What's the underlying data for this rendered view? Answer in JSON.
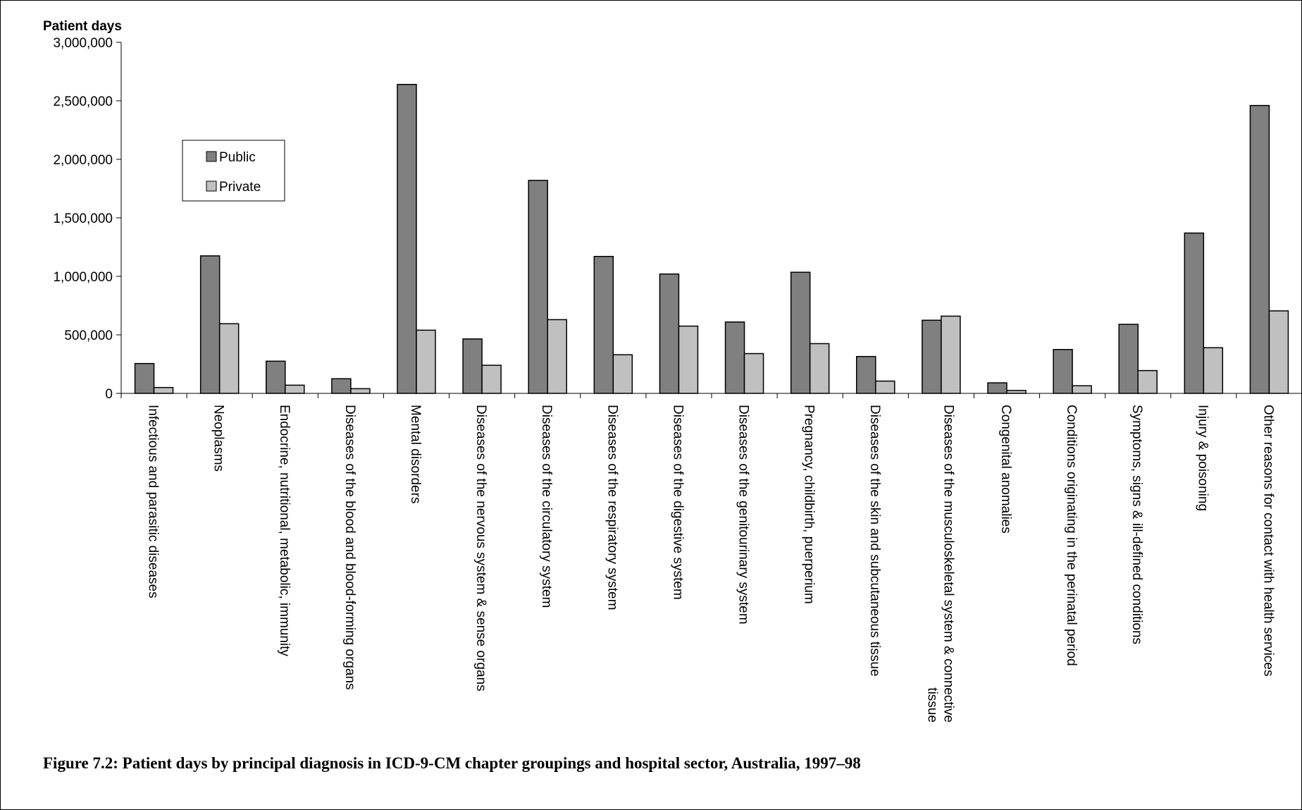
{
  "caption": "Figure 7.2: Patient days by principal diagnosis in ICD-9-CM chapter groupings and hospital sector, Australia, 1997–98",
  "chart_data": {
    "type": "bar",
    "ylabel": "Patient days",
    "xlabel": "",
    "ylim": [
      0,
      3000000
    ],
    "yticks": [
      0,
      500000,
      1000000,
      1500000,
      2000000,
      2500000,
      3000000
    ],
    "ytick_labels": [
      "0",
      "500,000",
      "1,000,000",
      "1,500,000",
      "2,000,000",
      "2,500,000",
      "3,000,000"
    ],
    "grid": false,
    "legend_position": "top-left",
    "categories": [
      [
        "Infectious and parasitic diseases"
      ],
      [
        "Neoplasms"
      ],
      [
        "Endocrine, nutritional, metabolic, immunity"
      ],
      [
        "Diseases of the blood and blood-forming organs"
      ],
      [
        "Mental disorders"
      ],
      [
        "Diseases of the nervous system & sense organs"
      ],
      [
        "Diseases of the circulatory system"
      ],
      [
        "Diseases of the respiratory system"
      ],
      [
        "Diseases of the digestive system"
      ],
      [
        "Diseases of the genitourinary system"
      ],
      [
        "Pregnancy, childbirth, puerperium"
      ],
      [
        "Diseases of the skin and subcutaneous tissue"
      ],
      [
        "Diseases of the musculoskeletal system & connective",
        "tissue"
      ],
      [
        "Congenital anomalies"
      ],
      [
        "Conditions originating in the perinatal period"
      ],
      [
        "Symptoms, signs & ill-defined conditions"
      ],
      [
        "Injury & poisoning"
      ],
      [
        "Other reasons for contact with health services"
      ]
    ],
    "series": [
      {
        "name": "Public",
        "color": "#808080",
        "values": [
          255000,
          1175000,
          275000,
          125000,
          2640000,
          465000,
          1820000,
          1170000,
          1020000,
          610000,
          1035000,
          315000,
          625000,
          90000,
          375000,
          590000,
          1370000,
          2460000
        ]
      },
      {
        "name": "Private",
        "color": "#c0c0c0",
        "values": [
          50000,
          595000,
          70000,
          40000,
          540000,
          240000,
          630000,
          330000,
          575000,
          340000,
          425000,
          105000,
          660000,
          25000,
          65000,
          195000,
          390000,
          705000
        ]
      }
    ]
  }
}
